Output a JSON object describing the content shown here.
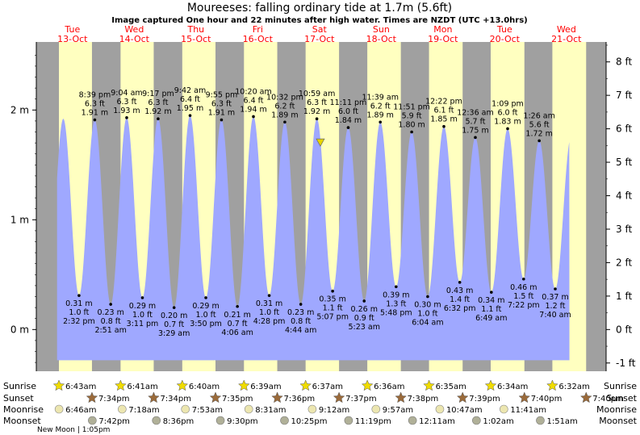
{
  "chart_data": {
    "type": "area",
    "title": "Moureeses: falling  ordinary tide at 1.7m (5.6ft)",
    "subtitle": "Image captured One hour and 22 minutes after high water. Times are NZDT (UTC +13.0hrs)",
    "ylim_m": [
      -0.38,
      2.62
    ],
    "yticks_m": [
      {
        "v": 0,
        "label": "0 m"
      },
      {
        "v": 1,
        "label": "1 m"
      },
      {
        "v": 2,
        "label": "2 m"
      }
    ],
    "yticks_ft": [
      "-1 ft",
      "0 ft",
      "1 ft",
      "2 ft",
      "3 ft",
      "4 ft",
      "5 ft",
      "6 ft",
      "7 ft",
      "8 ft"
    ],
    "days": [
      {
        "dow": "Tue",
        "date": "13-Oct"
      },
      {
        "dow": "Wed",
        "date": "14-Oct"
      },
      {
        "dow": "Thu",
        "date": "15-Oct"
      },
      {
        "dow": "Fri",
        "date": "16-Oct"
      },
      {
        "dow": "Sat",
        "date": "17-Oct"
      },
      {
        "dow": "Sun",
        "date": "18-Oct"
      },
      {
        "dow": "Mon",
        "date": "19-Oct"
      },
      {
        "dow": "Tue",
        "date": "20-Oct"
      },
      {
        "dow": "Wed",
        "date": "21-Oct"
      }
    ],
    "start_hour": 6,
    "end_hour": 20,
    "daylight": [
      {
        "sunrise": "6:43am",
        "sunset": "7:34pm"
      },
      {
        "sunrise": "6:41am",
        "sunset": "7:34pm"
      },
      {
        "sunrise": "6:40am",
        "sunset": "7:35pm"
      },
      {
        "sunrise": "6:39am",
        "sunset": "7:36pm"
      },
      {
        "sunrise": "6:37am",
        "sunset": "7:37pm"
      },
      {
        "sunrise": "6:36am",
        "sunset": "7:38pm"
      },
      {
        "sunrise": "6:35am",
        "sunset": "7:39pm"
      },
      {
        "sunrise": "6:34am",
        "sunset": "7:40pm"
      },
      {
        "sunrise": "6:32am",
        "sunset": "7:40pm"
      }
    ],
    "tides": [
      {
        "type": "low",
        "day": 0,
        "time": "2:32 pm",
        "m": 0.31,
        "ft": "1.0 ft",
        "mlabel": "0.31 m"
      },
      {
        "type": "high",
        "day": 0,
        "time": "8:39 pm",
        "m": 1.91,
        "ft": "6.3 ft",
        "mlabel": "1.91 m"
      },
      {
        "type": "low",
        "day": 1,
        "time": "2:51 am",
        "m": 0.23,
        "ft": "0.8 ft",
        "mlabel": "0.23 m"
      },
      {
        "type": "high",
        "day": 1,
        "time": "9:04 am",
        "m": 1.93,
        "ft": "6.3 ft",
        "mlabel": "1.93 m"
      },
      {
        "type": "low",
        "day": 1,
        "time": "3:11 pm",
        "m": 0.29,
        "ft": "1.0 ft",
        "mlabel": "0.29 m"
      },
      {
        "type": "high",
        "day": 1,
        "time": "9:17 pm",
        "m": 1.92,
        "ft": "6.3 ft",
        "mlabel": "1.92 m"
      },
      {
        "type": "low",
        "day": 2,
        "time": "3:29 am",
        "m": 0.2,
        "ft": "0.7 ft",
        "mlabel": "0.20 m"
      },
      {
        "type": "high",
        "day": 2,
        "time": "9:42 am",
        "m": 1.95,
        "ft": "6.4 ft",
        "mlabel": "1.95 m"
      },
      {
        "type": "low",
        "day": 2,
        "time": "3:50 pm",
        "m": 0.29,
        "ft": "1.0 ft",
        "mlabel": "0.29 m"
      },
      {
        "type": "high",
        "day": 2,
        "time": "9:55 pm",
        "m": 1.91,
        "ft": "6.3 ft",
        "mlabel": "1.91 m"
      },
      {
        "type": "low",
        "day": 3,
        "time": "4:06 am",
        "m": 0.21,
        "ft": "0.7 ft",
        "mlabel": "0.21 m"
      },
      {
        "type": "high",
        "day": 3,
        "time": "10:20 am",
        "m": 1.94,
        "ft": "6.4 ft",
        "mlabel": "1.94 m"
      },
      {
        "type": "low",
        "day": 3,
        "time": "4:28 pm",
        "m": 0.31,
        "ft": "1.0 ft",
        "mlabel": "0.31 m"
      },
      {
        "type": "high",
        "day": 3,
        "time": "10:32 pm",
        "m": 1.89,
        "ft": "6.2 ft",
        "mlabel": "1.89 m"
      },
      {
        "type": "low",
        "day": 4,
        "time": "4:44 am",
        "m": 0.23,
        "ft": "0.8 ft",
        "mlabel": "0.23 m"
      },
      {
        "type": "high",
        "day": 4,
        "time": "10:59 am",
        "m": 1.92,
        "ft": "6.3 ft",
        "mlabel": "1.92 m"
      },
      {
        "type": "low",
        "day": 4,
        "time": "5:07 pm",
        "m": 0.35,
        "ft": "1.1 ft",
        "mlabel": "0.35 m"
      },
      {
        "type": "high",
        "day": 4,
        "time": "11:11 pm",
        "m": 1.84,
        "ft": "6.0 ft",
        "mlabel": "1.84 m"
      },
      {
        "type": "low",
        "day": 5,
        "time": "5:23 am",
        "m": 0.26,
        "ft": "0.9 ft",
        "mlabel": "0.26 m"
      },
      {
        "type": "high",
        "day": 5,
        "time": "11:39 am",
        "m": 1.89,
        "ft": "6.2 ft",
        "mlabel": "1.89 m"
      },
      {
        "type": "low",
        "day": 5,
        "time": "5:48 pm",
        "m": 0.39,
        "ft": "1.3 ft",
        "mlabel": "0.39 m"
      },
      {
        "type": "high",
        "day": 5,
        "time": "11:51 pm",
        "m": 1.8,
        "ft": "5.9 ft",
        "mlabel": "1.80 m"
      },
      {
        "type": "low",
        "day": 6,
        "time": "6:04 am",
        "m": 0.3,
        "ft": "1.0 ft",
        "mlabel": "0.30 m"
      },
      {
        "type": "high",
        "day": 6,
        "time": "12:22 pm",
        "m": 1.85,
        "ft": "6.1 ft",
        "mlabel": "1.85 m"
      },
      {
        "type": "low",
        "day": 6,
        "time": "6:32 pm",
        "m": 0.43,
        "ft": "1.4 ft",
        "mlabel": "0.43 m"
      },
      {
        "type": "high",
        "day": 7,
        "time": "12:36 am",
        "m": 1.75,
        "ft": "5.7 ft",
        "mlabel": "1.75 m"
      },
      {
        "type": "low",
        "day": 7,
        "time": "6:49 am",
        "m": 0.34,
        "ft": "1.1 ft",
        "mlabel": "0.34 m"
      },
      {
        "type": "high",
        "day": 7,
        "time": "1:09 pm",
        "m": 1.83,
        "ft": "6.0 ft",
        "mlabel": "1.83 m"
      },
      {
        "type": "low",
        "day": 7,
        "time": "7:22 pm",
        "m": 0.46,
        "ft": "1.5 ft",
        "mlabel": "0.46 m"
      },
      {
        "type": "high",
        "day": 8,
        "time": "1:26 am",
        "m": 1.72,
        "ft": "5.6 ft",
        "mlabel": "1.72 m"
      },
      {
        "type": "low",
        "day": 8,
        "time": "7:40 am",
        "m": 0.37,
        "ft": "1.2 ft",
        "mlabel": "0.37 m"
      }
    ],
    "current": {
      "day": 4,
      "time": "12:21 pm",
      "m": 1.7
    },
    "bottom_rows": {
      "sunrise_label": "Sunrise",
      "sunset_label": "Sunset",
      "moonrise_label": "Moonrise",
      "moonset_label": "Moonset",
      "sunrise": [
        "6:43am",
        "6:41am",
        "6:40am",
        "6:39am",
        "6:37am",
        "6:36am",
        "6:35am",
        "6:34am",
        "6:32am"
      ],
      "sunset": [
        "7:34pm",
        "7:34pm",
        "7:35pm",
        "7:36pm",
        "7:37pm",
        "7:38pm",
        "7:39pm",
        "7:40pm",
        "7:40pm"
      ],
      "moonrise": [
        "6:46am",
        "7:18am",
        "7:53am",
        "8:31am",
        "9:12am",
        "9:57am",
        "10:47am",
        "11:41am"
      ],
      "moonset": [
        "7:42pm",
        "8:36pm",
        "9:30pm",
        "10:25pm",
        "11:19pm",
        "12:11am",
        "1:02am",
        "1:51am"
      ],
      "new_moon": "New Moon | 1:05pm"
    },
    "colors": {
      "night": "#a0a0a0",
      "day": "#ffffc0",
      "water": "#9fa8ff",
      "day_label": "#ff0000",
      "arrow": "#e8d400",
      "sun": "#f0dc00",
      "sunset_star": "#9a6a3a",
      "moon": "#ece6b0",
      "moonset": "#b0b098"
    }
  }
}
